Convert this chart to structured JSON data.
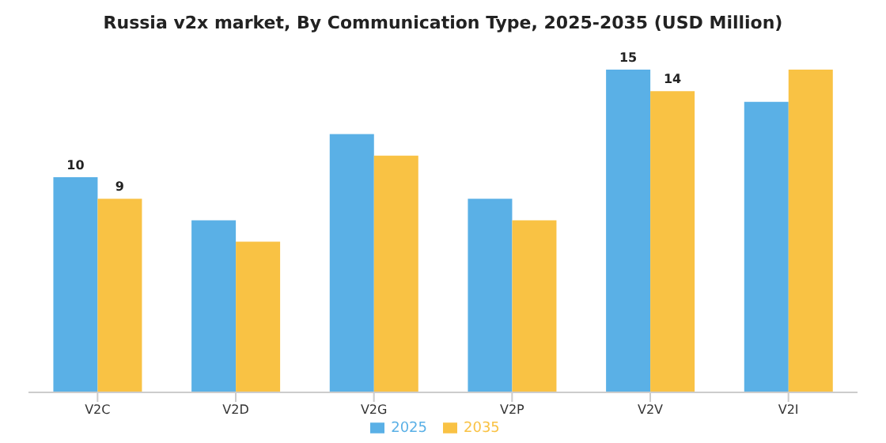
{
  "chart_data": {
    "type": "bar",
    "title": "Russia v2x market, By Communication Type, 2025-2035 (USD Million)",
    "categories": [
      "V2C",
      "V2D",
      "V2G",
      "V2P",
      "V2V",
      "V2I"
    ],
    "legend": "bottom",
    "series": [
      {
        "name": "2025",
        "color": "#5ab0e6",
        "values": [
          10,
          8,
          12,
          9,
          15,
          13.5
        ],
        "value_labels": [
          "10",
          null,
          null,
          null,
          "15",
          null
        ]
      },
      {
        "name": "2035",
        "color": "#f9c244",
        "values": [
          9,
          7,
          11,
          8,
          14,
          15
        ],
        "value_labels": [
          "9",
          null,
          null,
          null,
          "14",
          null
        ]
      }
    ]
  }
}
